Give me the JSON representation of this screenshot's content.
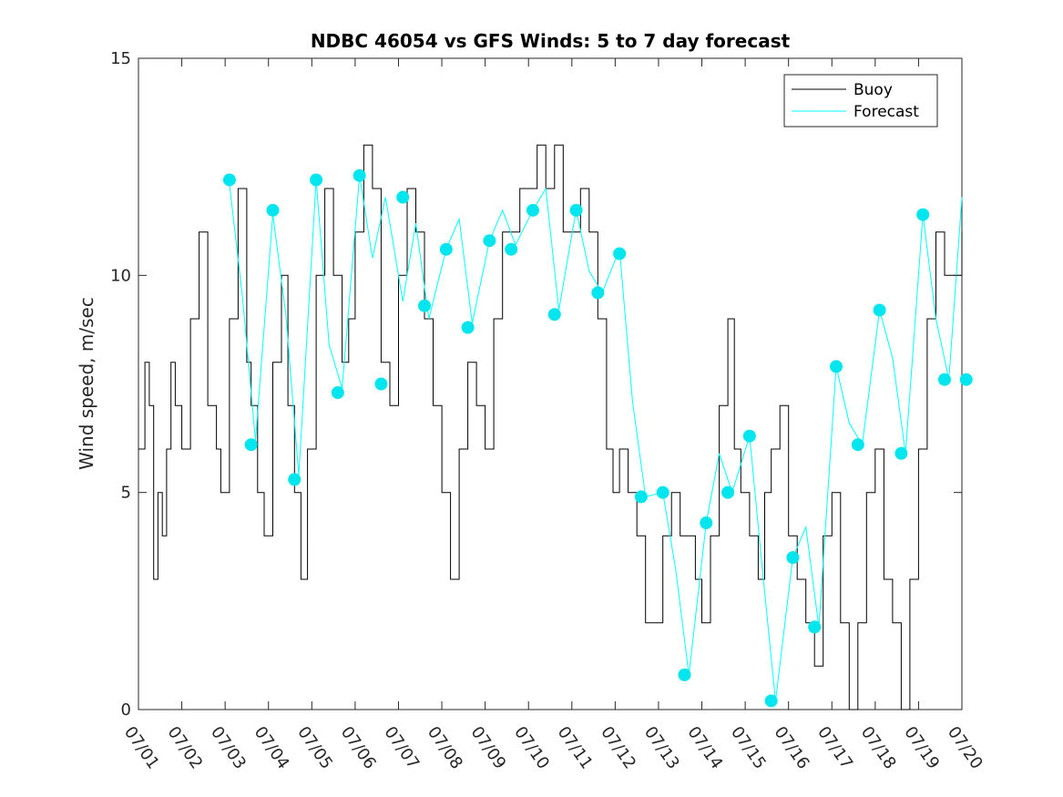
{
  "chart_data": {
    "type": "line",
    "title": "NDBC 46054 vs GFS Winds: 5 to 7 day forecast",
    "xlabel": "",
    "ylabel": "Wind speed, m/sec",
    "ylim": [
      0,
      15
    ],
    "yticks": [
      "0",
      "5",
      "10",
      "15"
    ],
    "xlim": [
      0,
      19
    ],
    "xticks": [
      "07/01",
      "07/02",
      "07/03",
      "07/04",
      "07/05",
      "07/06",
      "07/07",
      "07/08",
      "07/09",
      "07/10",
      "07/11",
      "07/12",
      "07/13",
      "07/14",
      "07/15",
      "07/16",
      "07/17",
      "07/18",
      "07/19",
      "07/20"
    ],
    "legend_position": "top-right",
    "grid": false,
    "colors": {
      "buoy": "#000000",
      "forecast": "#00ffff",
      "marker": "#00e5ee"
    },
    "series": [
      {
        "name": "Buoy",
        "x": [
          0.0,
          0.15,
          0.25,
          0.35,
          0.45,
          0.55,
          0.65,
          0.75,
          0.85,
          1.0,
          1.2,
          1.4,
          1.6,
          1.8,
          1.9,
          2.1,
          2.3,
          2.5,
          2.6,
          2.75,
          2.9,
          3.1,
          3.3,
          3.45,
          3.6,
          3.75,
          3.9,
          4.1,
          4.3,
          4.5,
          4.7,
          4.85,
          5.0,
          5.2,
          5.4,
          5.6,
          5.8,
          6.0,
          6.2,
          6.4,
          6.6,
          6.8,
          7.0,
          7.2,
          7.4,
          7.6,
          7.8,
          8.0,
          8.2,
          8.4,
          8.6,
          8.8,
          9.0,
          9.2,
          9.4,
          9.6,
          9.8,
          10.0,
          10.2,
          10.4,
          10.6,
          10.8,
          10.95,
          11.1,
          11.3,
          11.5,
          11.7,
          11.9,
          12.1,
          12.3,
          12.5,
          12.7,
          12.85,
          13.0,
          13.2,
          13.4,
          13.6,
          13.75,
          13.9,
          14.1,
          14.3,
          14.45,
          14.6,
          14.8,
          15.0,
          15.2,
          15.4,
          15.6,
          15.8,
          16.0,
          16.2,
          16.4,
          16.6,
          16.8,
          17.0,
          17.2,
          17.4,
          17.6,
          17.8,
          18.0,
          18.2,
          18.4,
          18.6,
          18.8,
          19.0
        ],
        "y": [
          6,
          8,
          7,
          3,
          5,
          4,
          6,
          8,
          7,
          6,
          9,
          11,
          7,
          6,
          5,
          9,
          12,
          8,
          7,
          5,
          4,
          8,
          10,
          7,
          5,
          3,
          6,
          10,
          12,
          10,
          8,
          9,
          11,
          13,
          12,
          8,
          7,
          10,
          12,
          11,
          9,
          7,
          5,
          3,
          6,
          8,
          7,
          6,
          9,
          11,
          11,
          12,
          12,
          13,
          12,
          13,
          11,
          11,
          12,
          11,
          9,
          6,
          5,
          6,
          5,
          4,
          2,
          2,
          4,
          5,
          4,
          4,
          3,
          2,
          4,
          7,
          9,
          6,
          5,
          4,
          3,
          5,
          6,
          7,
          4,
          3,
          2,
          1,
          4,
          5,
          2,
          0,
          2,
          5,
          6,
          3,
          2,
          0,
          3,
          6,
          9,
          11,
          10,
          10,
          11
        ]
      },
      {
        "name": "Forecast",
        "x": [
          2.1,
          2.4,
          2.7,
          3.1,
          3.4,
          3.7,
          4.1,
          4.4,
          4.7,
          5.1,
          5.4,
          5.7,
          6.1,
          6.4,
          6.7,
          7.1,
          7.4,
          7.7,
          8.1,
          8.4,
          8.7,
          9.1,
          9.4,
          9.7,
          10.1,
          10.4,
          10.7,
          11.1,
          11.4,
          11.7,
          12.1,
          12.4,
          12.7,
          13.1,
          13.4,
          13.7,
          14.1,
          14.4,
          14.7,
          15.1,
          15.4,
          15.7,
          16.1,
          16.4,
          16.7,
          17.1,
          17.4,
          17.7,
          18.1,
          18.4,
          18.7,
          19.0
        ],
        "y": [
          12.1,
          9.5,
          6.2,
          11.4,
          9.1,
          5.4,
          12.2,
          8.4,
          7.4,
          12.3,
          10.4,
          11.8,
          9.4,
          11.2,
          9.0,
          10.6,
          11.3,
          8.9,
          10.8,
          11.5,
          10.7,
          11.5,
          12.0,
          9.2,
          11.5,
          10.1,
          9.6,
          10.6,
          7.1,
          4.9,
          5.0,
          3.2,
          0.8,
          4.3,
          5.9,
          5.0,
          6.3,
          3.2,
          0.2,
          3.5,
          4.2,
          1.9,
          7.9,
          6.6,
          6.1,
          9.2,
          8.1,
          5.9,
          11.4,
          9.0,
          7.6,
          11.8
        ]
      }
    ],
    "markers": {
      "series": "Forecast",
      "x": [
        2.1,
        2.6,
        3.1,
        3.6,
        4.1,
        4.6,
        5.1,
        5.6,
        6.1,
        6.6,
        7.1,
        7.6,
        8.1,
        8.6,
        9.1,
        9.6,
        10.1,
        10.6,
        11.1,
        11.6,
        12.1,
        12.6,
        13.1,
        13.6,
        14.1,
        14.6,
        15.1,
        15.6,
        16.1,
        16.6,
        17.1,
        17.6,
        18.1,
        18.6,
        19.1
      ],
      "y": [
        12.2,
        6.1,
        11.5,
        5.3,
        12.2,
        7.3,
        12.3,
        7.5,
        11.8,
        9.3,
        10.6,
        8.8,
        10.8,
        10.6,
        11.5,
        9.1,
        11.5,
        9.6,
        10.5,
        4.9,
        5.0,
        0.8,
        4.3,
        5.0,
        6.3,
        0.2,
        3.5,
        1.9,
        7.9,
        6.1,
        9.2,
        5.9,
        11.4,
        7.6,
        7.6
      ]
    }
  },
  "legend": {
    "items": [
      "Buoy",
      "Forecast"
    ]
  }
}
